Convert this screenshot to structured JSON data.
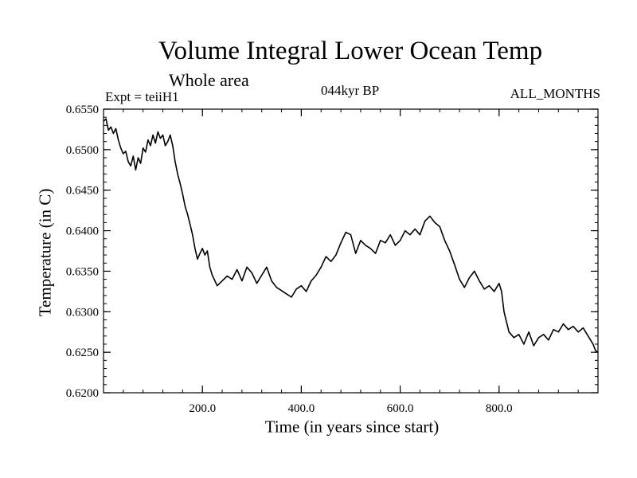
{
  "header": {
    "title": "Volume Integral Lower Ocean Temp",
    "subtitle": "Whole area",
    "expt": "Expt = teiiH1",
    "period": "044kyr BP",
    "months": "ALL_MONTHS"
  },
  "chart_data": {
    "type": "line",
    "title": "Volume Integral Lower Ocean Temp",
    "subtitle": "Whole area",
    "xlabel": "Time (in years since start)",
    "ylabel": "Temperature (in C)",
    "xlim": [
      0,
      1000
    ],
    "ylim": [
      0.62,
      0.655
    ],
    "x_ticks": [
      200,
      400,
      600,
      800
    ],
    "x_tick_labels": [
      "200.0",
      "400.0",
      "600.0",
      "800.0"
    ],
    "y_ticks": [
      0.62,
      0.625,
      0.63,
      0.635,
      0.64,
      0.645,
      0.65,
      0.655
    ],
    "y_tick_labels": [
      "0.6200",
      "0.6250",
      "0.6300",
      "0.6350",
      "0.6400",
      "0.6450",
      "0.6500",
      "0.6550"
    ],
    "grid": false,
    "series": [
      {
        "color": "#000000",
        "x": [
          0,
          5,
          10,
          15,
          20,
          25,
          30,
          35,
          40,
          45,
          50,
          55,
          60,
          65,
          70,
          75,
          80,
          85,
          90,
          95,
          100,
          105,
          110,
          115,
          120,
          125,
          130,
          135,
          140,
          145,
          150,
          155,
          160,
          165,
          170,
          175,
          180,
          185,
          190,
          195,
          200,
          205,
          210,
          215,
          220,
          230,
          240,
          250,
          260,
          270,
          280,
          290,
          300,
          310,
          320,
          330,
          340,
          350,
          360,
          370,
          380,
          390,
          400,
          410,
          420,
          430,
          440,
          450,
          460,
          470,
          480,
          490,
          500,
          510,
          520,
          530,
          540,
          550,
          560,
          570,
          580,
          590,
          600,
          610,
          620,
          630,
          640,
          650,
          660,
          670,
          680,
          690,
          700,
          710,
          720,
          730,
          740,
          750,
          760,
          770,
          780,
          790,
          800,
          805,
          810,
          820,
          830,
          840,
          850,
          860,
          870,
          880,
          890,
          900,
          910,
          920,
          930,
          940,
          950,
          960,
          970,
          980,
          990,
          995,
          1000
        ],
        "y": [
          0.6535,
          0.6538,
          0.6524,
          0.6528,
          0.652,
          0.6526,
          0.6512,
          0.6502,
          0.6495,
          0.6498,
          0.6485,
          0.648,
          0.6492,
          0.6475,
          0.649,
          0.6483,
          0.6502,
          0.6497,
          0.6512,
          0.6505,
          0.6518,
          0.6508,
          0.6522,
          0.6514,
          0.6518,
          0.6505,
          0.651,
          0.6518,
          0.6505,
          0.6485,
          0.647,
          0.6458,
          0.6445,
          0.643,
          0.642,
          0.6408,
          0.6395,
          0.6378,
          0.6365,
          0.6372,
          0.6378,
          0.637,
          0.6375,
          0.6355,
          0.6345,
          0.6332,
          0.6338,
          0.6344,
          0.634,
          0.6352,
          0.6338,
          0.6355,
          0.6348,
          0.6335,
          0.6345,
          0.6355,
          0.6338,
          0.633,
          0.6326,
          0.6322,
          0.6318,
          0.6328,
          0.6332,
          0.6325,
          0.6338,
          0.6345,
          0.6355,
          0.6368,
          0.6362,
          0.637,
          0.6385,
          0.6398,
          0.6395,
          0.6372,
          0.6388,
          0.6382,
          0.6378,
          0.6372,
          0.6388,
          0.6385,
          0.6395,
          0.6382,
          0.6388,
          0.64,
          0.6395,
          0.6402,
          0.6395,
          0.6412,
          0.6418,
          0.641,
          0.6405,
          0.6388,
          0.6375,
          0.6358,
          0.634,
          0.633,
          0.6342,
          0.635,
          0.6338,
          0.6328,
          0.6332,
          0.6325,
          0.6335,
          0.6325,
          0.63,
          0.6275,
          0.6268,
          0.6272,
          0.626,
          0.6275,
          0.6258,
          0.6268,
          0.6272,
          0.6265,
          0.6278,
          0.6275,
          0.6285,
          0.6278,
          0.6282,
          0.6275,
          0.628,
          0.627,
          0.626,
          0.6252,
          0.625
        ]
      }
    ]
  }
}
